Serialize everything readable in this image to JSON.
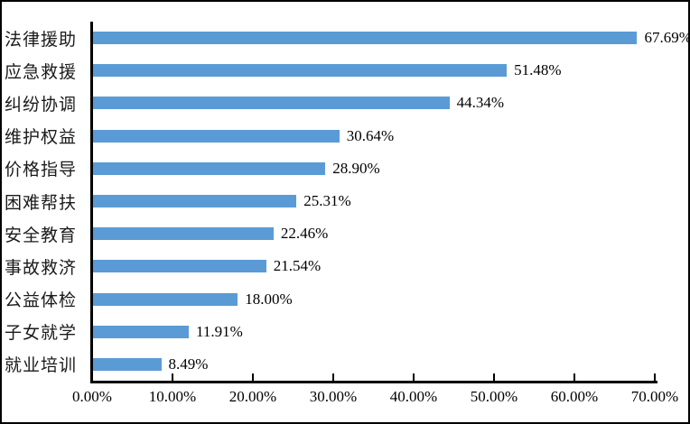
{
  "chart_data": {
    "type": "bar",
    "orientation": "horizontal",
    "title": "",
    "categories": [
      "法律援助",
      "应急救援",
      "纠纷协调",
      "维护权益",
      "价格指导",
      "困难帮扶",
      "安全教育",
      "事故救济",
      "公益体检",
      "子女就学",
      "就业培训"
    ],
    "values": [
      67.69,
      51.48,
      44.34,
      30.64,
      28.9,
      25.31,
      22.46,
      21.54,
      18.0,
      11.91,
      8.49
    ],
    "value_labels": [
      "67.69%",
      "51.48%",
      "44.34%",
      "30.64%",
      "28.90%",
      "25.31%",
      "22.46%",
      "21.54%",
      "18.00%",
      "11.91%",
      "8.49%"
    ],
    "x_tick_labels": [
      "0.00%",
      "10.00%",
      "20.00%",
      "30.00%",
      "40.00%",
      "50.00%",
      "60.00%",
      "70.00%"
    ],
    "xlim": [
      0,
      70
    ],
    "grid": false,
    "legend": null,
    "colors": {
      "bar": "#5B9BD5",
      "axis": "#000000",
      "text": "#000000",
      "background": "#FFFFFF",
      "frame_border": "#000000"
    }
  }
}
